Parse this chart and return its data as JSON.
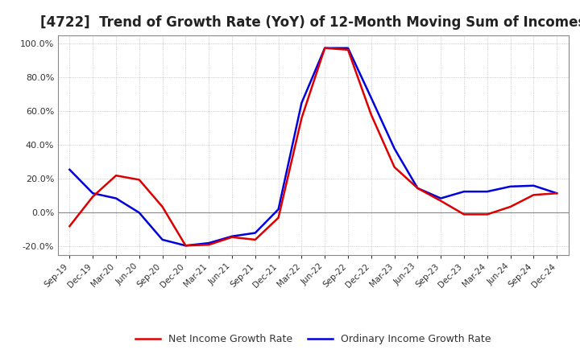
{
  "title": "[4722]  Trend of Growth Rate (YoY) of 12-Month Moving Sum of Incomes",
  "title_fontsize": 12,
  "ylim": [
    -0.25,
    1.05
  ],
  "yticks": [
    -0.2,
    0.0,
    0.2,
    0.4,
    0.6,
    0.8,
    1.0
  ],
  "background_color": "#ffffff",
  "grid_color": "#aaaaaa",
  "legend_labels": [
    "Ordinary Income Growth Rate",
    "Net Income Growth Rate"
  ],
  "legend_colors": [
    "#0000dd",
    "#dd0000"
  ],
  "x_labels": [
    "Sep-19",
    "Dec-19",
    "Mar-20",
    "Jun-20",
    "Sep-20",
    "Dec-20",
    "Mar-21",
    "Jun-21",
    "Sep-21",
    "Dec-21",
    "Mar-22",
    "Jun-22",
    "Sep-22",
    "Dec-22",
    "Mar-23",
    "Jun-23",
    "Sep-23",
    "Dec-23",
    "Mar-24",
    "Jun-24",
    "Sep-24",
    "Dec-24"
  ],
  "ordinary_income": [
    0.255,
    0.115,
    0.085,
    0.0,
    -0.16,
    -0.195,
    -0.18,
    -0.14,
    -0.12,
    0.02,
    0.65,
    0.975,
    0.975,
    0.68,
    0.38,
    0.145,
    0.085,
    0.125,
    0.125,
    0.155,
    0.16,
    0.115
  ],
  "net_income": [
    -0.08,
    0.095,
    0.22,
    0.195,
    0.035,
    -0.195,
    -0.19,
    -0.145,
    -0.16,
    -0.03,
    0.56,
    0.975,
    0.965,
    0.58,
    0.27,
    0.145,
    0.07,
    -0.01,
    -0.01,
    0.035,
    0.105,
    0.115
  ]
}
